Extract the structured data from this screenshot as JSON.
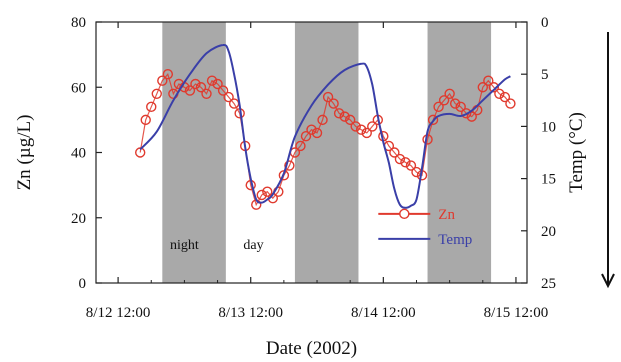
{
  "chart_data": {
    "type": "line",
    "xlabel": "Date (2002)",
    "ylabel": "Zn (µg/L)",
    "y2label": "Temp (°C)",
    "x_unit": "hours since 8/12 12:00",
    "xlim": [
      -4,
      74
    ],
    "ylim": [
      0,
      80
    ],
    "y2lim": [
      0,
      25
    ],
    "y2_inverted": true,
    "x_ticks": [
      {
        "x": 0,
        "label": "8/12 12:00"
      },
      {
        "x": 24,
        "label": "8/13 12:00"
      },
      {
        "x": 48,
        "label": "8/14 12:00"
      },
      {
        "x": 72,
        "label": "8/15 12:00"
      }
    ],
    "y_ticks": [
      0,
      20,
      40,
      60,
      80
    ],
    "y2_ticks": [
      0,
      5,
      10,
      15,
      20,
      25
    ],
    "night_bands": [
      [
        8,
        19.5
      ],
      [
        32,
        43.5
      ],
      [
        56,
        67.5
      ]
    ],
    "annotations": [
      {
        "text": "night",
        "x": 12,
        "y": 12
      },
      {
        "text": "day",
        "x": 24.5,
        "y": 12
      }
    ],
    "legend_position": "lower-right",
    "arrow_direction": "down",
    "series": [
      {
        "name": "Zn",
        "axis": "left",
        "color": "#e03a2e",
        "marker": "circle",
        "x": [
          4,
          5,
          6,
          7,
          8,
          9,
          10,
          11,
          12,
          13,
          14,
          15,
          16,
          17,
          18,
          19,
          20,
          21,
          22,
          23,
          24,
          25,
          26,
          27,
          28,
          29,
          30,
          31,
          32,
          33,
          34,
          35,
          36,
          37,
          38,
          39,
          40,
          41,
          42,
          43,
          44,
          45,
          46,
          47,
          48,
          49,
          50,
          51,
          52,
          53,
          54,
          55,
          56,
          57,
          58,
          59,
          60,
          61,
          62,
          63,
          64,
          65,
          66,
          67,
          68,
          69,
          70,
          71
        ],
        "values": [
          40,
          50,
          54,
          58,
          62,
          64,
          58,
          61,
          60,
          59,
          61,
          60,
          58,
          62,
          61,
          59,
          57,
          55,
          52,
          42,
          30,
          24,
          27,
          28,
          26,
          28,
          33,
          36,
          40,
          42,
          45,
          47,
          46,
          50,
          57,
          55,
          52,
          51,
          50,
          48,
          47,
          46,
          48,
          50,
          45,
          42,
          40,
          38,
          37,
          36,
          34,
          33,
          44,
          50,
          54,
          56,
          58,
          55,
          54,
          52,
          51,
          53,
          60,
          62,
          60,
          58,
          57,
          55
        ]
      },
      {
        "name": "Temp",
        "axis": "right",
        "color": "#3a3fa8",
        "marker": "none",
        "x": [
          4,
          7,
          10,
          13,
          16,
          19,
          20,
          21,
          22,
          23,
          24,
          25,
          26,
          27,
          28,
          30,
          32,
          35,
          38,
          41,
          44,
          45,
          46,
          47,
          48,
          49,
          50,
          51,
          52,
          53,
          54,
          55,
          56,
          57,
          58,
          60,
          62,
          64,
          66,
          68,
          70,
          71
        ],
        "values": [
          12.2,
          10.5,
          7.5,
          5.0,
          3.0,
          2.2,
          2.8,
          5.0,
          8.0,
          12.0,
          15.0,
          17.0,
          17.3,
          17.0,
          16.5,
          14.5,
          11.0,
          8.0,
          6.0,
          4.6,
          4.0,
          4.3,
          6.0,
          9.0,
          11.5,
          13.5,
          16.0,
          17.5,
          17.8,
          17.6,
          17.0,
          14.0,
          10.5,
          9.5,
          9.0,
          8.8,
          9.0,
          8.5,
          7.5,
          6.5,
          5.5,
          5.2
        ]
      }
    ]
  }
}
